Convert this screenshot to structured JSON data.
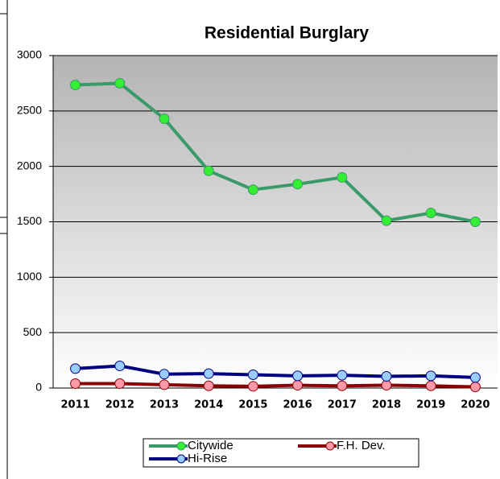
{
  "chart_data": {
    "type": "line",
    "title": "Residential Burglary",
    "categories": [
      "2011",
      "2012",
      "2013",
      "2014",
      "2015",
      "2016",
      "2017",
      "2018",
      "2019",
      "2020"
    ],
    "series": [
      {
        "name": "Citywide",
        "color": "#3a9a6a",
        "marker": "#33ee33",
        "values": [
          2735,
          2750,
          2430,
          1960,
          1790,
          1840,
          1900,
          1510,
          1580,
          1500
        ]
      },
      {
        "name": "F.H. Dev.",
        "color": "#8b0000",
        "marker": "#ff99aa",
        "values": [
          40,
          40,
          30,
          20,
          15,
          25,
          20,
          25,
          20,
          10
        ]
      },
      {
        "name": "Hi-Rise",
        "color": "#000080",
        "marker": "#99ccff",
        "values": [
          175,
          200,
          125,
          130,
          120,
          110,
          115,
          105,
          110,
          95
        ]
      }
    ],
    "ylim": [
      0,
      3000
    ],
    "yticks": [
      0,
      500,
      1000,
      1500,
      2000,
      2500,
      3000
    ],
    "grid": true
  }
}
